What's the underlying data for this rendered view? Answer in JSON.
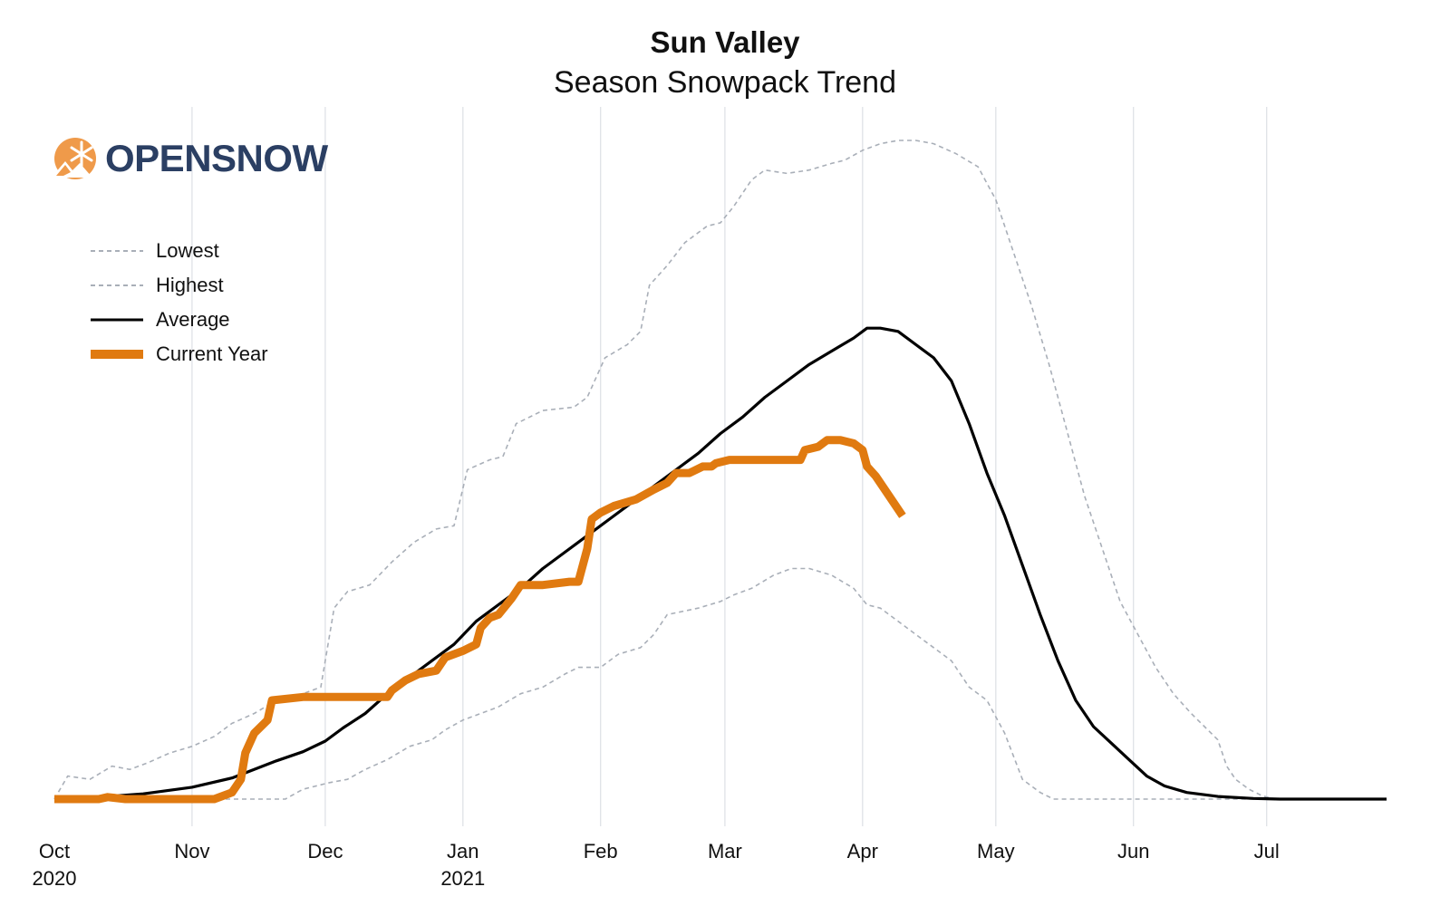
{
  "chart_data": {
    "type": "line",
    "title": "Sun Valley",
    "subtitle": "Season Snowpack Trend",
    "xlabel": "",
    "ylabel": "",
    "ylim": [
      0,
      100
    ],
    "x_range": [
      0,
      300
    ],
    "grid": "vertical",
    "legend_position": "top-left",
    "x_ticks": [
      {
        "x": 0,
        "label": "Oct",
        "year": "2020"
      },
      {
        "x": 31,
        "label": "Nov",
        "year": ""
      },
      {
        "x": 61,
        "label": "Dec",
        "year": ""
      },
      {
        "x": 92,
        "label": "Jan",
        "year": "2021"
      },
      {
        "x": 123,
        "label": "Feb",
        "year": ""
      },
      {
        "x": 151,
        "label": "Mar",
        "year": ""
      },
      {
        "x": 182,
        "label": "Apr",
        "year": ""
      },
      {
        "x": 212,
        "label": "May",
        "year": ""
      },
      {
        "x": 243,
        "label": "Jun",
        "year": ""
      },
      {
        "x": 273,
        "label": "Jul",
        "year": ""
      }
    ],
    "series": [
      {
        "name": "Lowest",
        "style": "dashed",
        "color": "#a9afb8",
        "points": [
          [
            0,
            0
          ],
          [
            10,
            0
          ],
          [
            20,
            0
          ],
          [
            40,
            0
          ],
          [
            52,
            0
          ],
          [
            56,
            1.5
          ],
          [
            62,
            2.5
          ],
          [
            66,
            3
          ],
          [
            70,
            4.5
          ],
          [
            75,
            6
          ],
          [
            80,
            8
          ],
          [
            85,
            9
          ],
          [
            88,
            10.5
          ],
          [
            92,
            12
          ],
          [
            96,
            13
          ],
          [
            100,
            14
          ],
          [
            105,
            16
          ],
          [
            110,
            17
          ],
          [
            115,
            19
          ],
          [
            118,
            20
          ],
          [
            123,
            20
          ],
          [
            127,
            22
          ],
          [
            132,
            23
          ],
          [
            135,
            25
          ],
          [
            138,
            28
          ],
          [
            145,
            29
          ],
          [
            150,
            30
          ],
          [
            153,
            31
          ],
          [
            157,
            32
          ],
          [
            162,
            34
          ],
          [
            166,
            35
          ],
          [
            170,
            35
          ],
          [
            175,
            34
          ],
          [
            180,
            32
          ],
          [
            183,
            29.5
          ],
          [
            186,
            29
          ],
          [
            190,
            27
          ],
          [
            194,
            25
          ],
          [
            198,
            23
          ],
          [
            202,
            21
          ],
          [
            206,
            17
          ],
          [
            210,
            15
          ],
          [
            214,
            10
          ],
          [
            218,
            3
          ],
          [
            222,
            1
          ],
          [
            225,
            0
          ],
          [
            240,
            0
          ],
          [
            260,
            0
          ],
          [
            300,
            0
          ]
        ]
      },
      {
        "name": "Highest",
        "style": "dashed",
        "color": "#a9afb8",
        "points": [
          [
            0,
            0
          ],
          [
            3,
            3.5
          ],
          [
            8,
            3
          ],
          [
            13,
            5
          ],
          [
            17,
            4.5
          ],
          [
            21,
            5.5
          ],
          [
            26,
            7
          ],
          [
            31,
            8
          ],
          [
            36,
            9.5
          ],
          [
            40,
            11.5
          ],
          [
            45,
            13
          ],
          [
            50,
            15
          ],
          [
            56,
            16
          ],
          [
            60,
            17
          ],
          [
            63,
            29
          ],
          [
            66,
            31.5
          ],
          [
            71,
            32.5
          ],
          [
            76,
            36
          ],
          [
            81,
            39
          ],
          [
            86,
            41
          ],
          [
            90,
            41.5
          ],
          [
            93,
            50
          ],
          [
            98,
            51.5
          ],
          [
            101,
            52
          ],
          [
            104,
            57
          ],
          [
            110,
            59
          ],
          [
            117,
            59.5
          ],
          [
            120,
            61
          ],
          [
            124,
            67
          ],
          [
            129,
            69
          ],
          [
            132,
            71
          ],
          [
            134,
            78
          ],
          [
            138,
            81
          ],
          [
            142,
            84.5
          ],
          [
            147,
            87
          ],
          [
            150,
            87.5
          ],
          [
            153,
            90
          ],
          [
            157,
            94
          ],
          [
            160,
            95.5
          ],
          [
            165,
            95
          ],
          [
            170,
            95.5
          ],
          [
            175,
            96.5
          ],
          [
            178,
            97
          ],
          [
            182,
            98.5
          ],
          [
            186,
            99.5
          ],
          [
            190,
            100
          ],
          [
            194,
            100
          ],
          [
            198,
            99.5
          ],
          [
            203,
            98
          ],
          [
            208,
            96
          ],
          [
            212,
            91
          ],
          [
            216,
            83
          ],
          [
            220,
            75
          ],
          [
            224,
            66
          ],
          [
            228,
            56
          ],
          [
            232,
            46
          ],
          [
            236,
            38
          ],
          [
            240,
            30
          ],
          [
            244,
            25
          ],
          [
            248,
            20
          ],
          [
            252,
            16
          ],
          [
            256,
            13
          ],
          [
            259,
            11
          ],
          [
            262,
            9
          ],
          [
            264,
            5
          ],
          [
            266,
            3
          ],
          [
            269,
            1.5
          ],
          [
            272,
            0.5
          ],
          [
            275,
            0
          ],
          [
            300,
            0
          ]
        ]
      },
      {
        "name": "Average",
        "style": "solid",
        "color": "#000000",
        "points": [
          [
            0,
            0
          ],
          [
            10,
            0.3
          ],
          [
            20,
            0.8
          ],
          [
            31,
            1.8
          ],
          [
            40,
            3.2
          ],
          [
            50,
            5.8
          ],
          [
            56,
            7.2
          ],
          [
            61,
            8.8
          ],
          [
            65,
            10.8
          ],
          [
            70,
            13
          ],
          [
            75,
            16
          ],
          [
            80,
            18.5
          ],
          [
            85,
            21
          ],
          [
            90,
            23.5
          ],
          [
            95,
            27
          ],
          [
            100,
            29.5
          ],
          [
            105,
            32
          ],
          [
            110,
            35
          ],
          [
            115,
            37.5
          ],
          [
            120,
            40
          ],
          [
            125,
            42.5
          ],
          [
            130,
            45
          ],
          [
            135,
            47.5
          ],
          [
            140,
            50
          ],
          [
            145,
            52.5
          ],
          [
            150,
            55.5
          ],
          [
            155,
            58
          ],
          [
            160,
            61
          ],
          [
            165,
            63.5
          ],
          [
            170,
            66
          ],
          [
            175,
            68
          ],
          [
            180,
            70
          ],
          [
            183,
            71.5
          ],
          [
            186,
            71.5
          ],
          [
            190,
            71
          ],
          [
            194,
            69
          ],
          [
            198,
            67
          ],
          [
            202,
            63.5
          ],
          [
            206,
            57
          ],
          [
            210,
            49.5
          ],
          [
            214,
            43
          ],
          [
            218,
            35.5
          ],
          [
            222,
            28
          ],
          [
            226,
            21
          ],
          [
            230,
            15
          ],
          [
            234,
            11
          ],
          [
            238,
            8.5
          ],
          [
            242,
            6
          ],
          [
            246,
            3.5
          ],
          [
            250,
            2
          ],
          [
            255,
            1
          ],
          [
            262,
            0.4
          ],
          [
            270,
            0.1
          ],
          [
            276,
            0
          ],
          [
            300,
            0
          ]
        ]
      },
      {
        "name": "Current Year",
        "style": "solid-thick",
        "color": "#e07a10",
        "points": [
          [
            0,
            0
          ],
          [
            10,
            0
          ],
          [
            12,
            0.3
          ],
          [
            16,
            0
          ],
          [
            25,
            0
          ],
          [
            30,
            0
          ],
          [
            36,
            0
          ],
          [
            38,
            0.5
          ],
          [
            40,
            1
          ],
          [
            42,
            3
          ],
          [
            43,
            7
          ],
          [
            45,
            10
          ],
          [
            48,
            12
          ],
          [
            49,
            15
          ],
          [
            56,
            15.5
          ],
          [
            60,
            15.5
          ],
          [
            65,
            15.5
          ],
          [
            75,
            15.5
          ],
          [
            76,
            16.5
          ],
          [
            79,
            18
          ],
          [
            82,
            19
          ],
          [
            86,
            19.5
          ],
          [
            88,
            21.5
          ],
          [
            92,
            22.5
          ],
          [
            95,
            23.5
          ],
          [
            96,
            26
          ],
          [
            98,
            27.5
          ],
          [
            100,
            28
          ],
          [
            103,
            30.5
          ],
          [
            105,
            32.5
          ],
          [
            110,
            32.5
          ],
          [
            116,
            33
          ],
          [
            118,
            33
          ],
          [
            120,
            38
          ],
          [
            121,
            42.5
          ],
          [
            123,
            43.5
          ],
          [
            126,
            44.5
          ],
          [
            131,
            45.5
          ],
          [
            135,
            47
          ],
          [
            138,
            48
          ],
          [
            140,
            49.5
          ],
          [
            143,
            49.5
          ],
          [
            146,
            50.5
          ],
          [
            148,
            50.5
          ],
          [
            149,
            51
          ],
          [
            152,
            51.5
          ],
          [
            153,
            51.5
          ],
          [
            155,
            51.5
          ],
          [
            160,
            51.5
          ],
          [
            165,
            51.5
          ],
          [
            168,
            51.5
          ],
          [
            169,
            53
          ],
          [
            172,
            53.5
          ],
          [
            174,
            54.5
          ],
          [
            177,
            54.5
          ],
          [
            180,
            54
          ],
          [
            182,
            53
          ],
          [
            183,
            50.5
          ],
          [
            185,
            49
          ],
          [
            187,
            47
          ],
          [
            189,
            45
          ],
          [
            191,
            43
          ]
        ]
      }
    ]
  },
  "legend": [
    {
      "label": "Lowest",
      "style": "dashed",
      "color": "#a9afb8"
    },
    {
      "label": "Highest",
      "style": "dashed",
      "color": "#a9afb8"
    },
    {
      "label": "Average",
      "style": "solid",
      "color": "#000000"
    },
    {
      "label": "Current Year",
      "style": "thick",
      "color": "#e07a10"
    }
  ],
  "logo": {
    "text_open": "OPEN",
    "text_snow": "SNOW",
    "icon": "snowflake-sun-icon",
    "color": "#2b3f63",
    "accent": "#ef9a4a"
  },
  "colors": {
    "grid": "#dfe2e7",
    "baseline": "#000000"
  }
}
